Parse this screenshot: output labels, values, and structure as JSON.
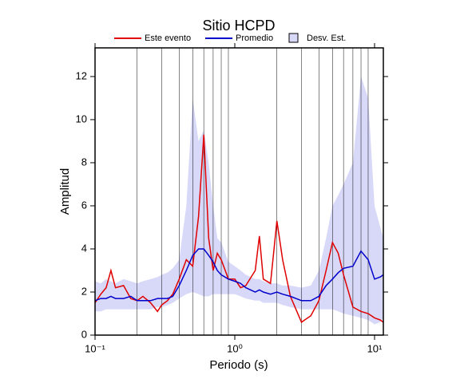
{
  "chart_data": {
    "type": "line",
    "title": "Sitio HCPD",
    "x_label": "Periodo (s)",
    "y_label": "Amplitud",
    "log_x": true,
    "xlim": [
      0.1,
      11.56
    ],
    "ylim": [
      0,
      13.33
    ],
    "xticks": [
      {
        "value": 0.1,
        "label": "10⁻¹"
      },
      {
        "value": 1,
        "label": "10⁰"
      },
      {
        "value": 10,
        "label": "10¹"
      }
    ],
    "xgrid": [
      0.2,
      0.3,
      0.4,
      0.5,
      0.6,
      0.7,
      0.8,
      0.9,
      2,
      3,
      4,
      5,
      6,
      7,
      8,
      9
    ],
    "yticks": [
      0,
      2,
      4,
      6,
      8,
      10,
      12
    ],
    "x": [
      0.1,
      0.11,
      0.12,
      0.13,
      0.14,
      0.16,
      0.18,
      0.2,
      0.22,
      0.25,
      0.28,
      0.3,
      0.33,
      0.36,
      0.4,
      0.45,
      0.5,
      0.55,
      0.6,
      0.65,
      0.7,
      0.75,
      0.8,
      0.9,
      1.0,
      1.1,
      1.2,
      1.4,
      1.5,
      1.6,
      1.8,
      2.0,
      2.2,
      2.5,
      3.0,
      3.5,
      4.0,
      4.5,
      5.0,
      5.5,
      6,
      7,
      8,
      9,
      10,
      11,
      11.56
    ],
    "band": {
      "name": "Desv. Est.",
      "color": "#d8d8f8",
      "upper": [
        2.5,
        2.4,
        2.6,
        2.5,
        2.4,
        2.6,
        2.5,
        2.4,
        2.5,
        2.6,
        2.7,
        2.8,
        2.9,
        3.1,
        3.5,
        6,
        11,
        9,
        9.5,
        8,
        6,
        4.5,
        4.3,
        3.4,
        3.2,
        3.0,
        2.8,
        2.6,
        2.6,
        2.5,
        2.4,
        2.4,
        2.3,
        2.3,
        2.2,
        2.3,
        3,
        4.5,
        6,
        6.5,
        7,
        8,
        12,
        11,
        6,
        5,
        4.5
      ],
      "lower": [
        1.1,
        1.1,
        1.2,
        1.2,
        1.2,
        1.2,
        1.2,
        1.2,
        1.2,
        1.2,
        1.3,
        1.3,
        1.4,
        1.5,
        1.7,
        1.9,
        2.0,
        1.9,
        1.8,
        1.8,
        1.9,
        1.9,
        1.9,
        1.9,
        1.9,
        1.8,
        1.7,
        1.6,
        1.6,
        1.5,
        1.5,
        1.5,
        1.4,
        1.3,
        1.2,
        1.2,
        1.2,
        1.2,
        1.2,
        1.1,
        1.0,
        0.9,
        0.8,
        0.7,
        0.5,
        0.6,
        0.8
      ]
    },
    "series": [
      {
        "name": "Este evento",
        "color": "#e00000",
        "values": [
          1.5,
          1.9,
          2.2,
          3.0,
          2.2,
          2.3,
          1.7,
          1.6,
          1.8,
          1.5,
          1.1,
          1.4,
          1.6,
          1.9,
          2.6,
          3.5,
          3.2,
          5.5,
          9.3,
          4.5,
          3.0,
          3.8,
          3.5,
          2.6,
          2.6,
          2.2,
          2.3,
          3.0,
          4.6,
          2.6,
          2.4,
          5.3,
          3.5,
          1.8,
          0.6,
          0.9,
          1.6,
          3.0,
          4.3,
          3.8,
          2.8,
          1.3,
          1.1,
          1.0,
          0.8,
          0.7,
          0.6
        ]
      },
      {
        "name": "Promedio",
        "color": "#0000cc",
        "values": [
          1.6,
          1.7,
          1.7,
          1.8,
          1.7,
          1.7,
          1.8,
          1.6,
          1.6,
          1.6,
          1.7,
          1.7,
          1.7,
          1.8,
          2.3,
          3.0,
          3.7,
          4.0,
          4.0,
          3.7,
          3.4,
          3.0,
          2.8,
          2.6,
          2.5,
          2.4,
          2.2,
          2.0,
          2.1,
          2.0,
          1.9,
          2.0,
          1.9,
          1.8,
          1.6,
          1.6,
          1.8,
          2.3,
          2.6,
          2.9,
          3.1,
          3.2,
          3.9,
          3.5,
          2.6,
          2.7,
          2.8
        ]
      }
    ]
  }
}
